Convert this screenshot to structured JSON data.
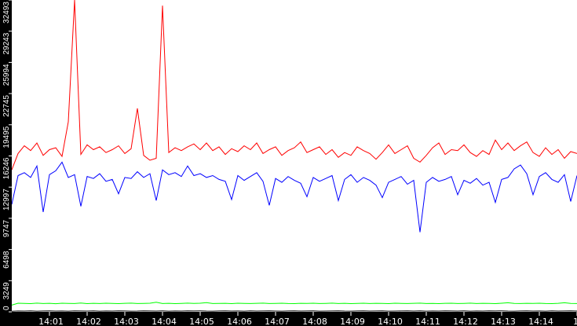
{
  "chart_data": {
    "type": "line",
    "title": "",
    "xlabel": "",
    "ylabel": "",
    "ylim": [
      0,
      32493
    ],
    "y_ticks": [
      "0",
      "3249",
      "6498",
      "9747",
      "12997",
      "16246",
      "19495",
      "22745",
      "25994",
      "29243",
      "32493"
    ],
    "x_ticks": [
      "14:01",
      "14:02",
      "14:03",
      "14:04",
      "14:05",
      "14:06",
      "14:07",
      "14:08",
      "14:09",
      "14:10",
      "14:11",
      "14:12",
      "14:13",
      "14:14",
      "14"
    ],
    "x_start": "14:00:00",
    "x_step_seconds": 10,
    "grid": false,
    "background": "#ffffff",
    "axis_color": "#000000",
    "series": [
      {
        "color": "#ff0000",
        "values": [
          14800,
          16500,
          17300,
          16800,
          17600,
          16300,
          16900,
          17100,
          16200,
          19800,
          32493,
          16400,
          17400,
          16900,
          17200,
          16600,
          16900,
          17300,
          16500,
          17000,
          21200,
          16300,
          15800,
          16000,
          31900,
          16600,
          17100,
          16800,
          17200,
          17500,
          16900,
          17600,
          16800,
          17200,
          16400,
          17000,
          16700,
          17300,
          16900,
          17600,
          16500,
          16900,
          17200,
          16300,
          16800,
          17100,
          17700,
          16600,
          16900,
          17200,
          16400,
          16900,
          16100,
          16600,
          16300,
          17200,
          16800,
          16500,
          15900,
          16600,
          17400,
          16500,
          16900,
          17300,
          16000,
          15600,
          16300,
          17100,
          17600,
          16400,
          16900,
          16800,
          17400,
          16600,
          16200,
          16800,
          16400,
          17900,
          16900,
          17600,
          16800,
          17300,
          17700,
          16600,
          16200,
          17100,
          16400,
          16900,
          16000,
          16700,
          16500
        ]
      },
      {
        "color": "#0000ff",
        "values": [
          11200,
          14200,
          14500,
          14000,
          15200,
          10400,
          14300,
          14700,
          15600,
          14000,
          14300,
          11000,
          14100,
          13900,
          14400,
          13600,
          13800,
          12300,
          14000,
          13900,
          14600,
          14000,
          14400,
          11600,
          14800,
          14300,
          14500,
          14100,
          15200,
          14200,
          14400,
          14000,
          14200,
          13800,
          13600,
          11700,
          14200,
          13700,
          14100,
          14500,
          13600,
          11100,
          13900,
          13500,
          14100,
          13700,
          13400,
          12000,
          14000,
          13600,
          13900,
          14200,
          11600,
          13800,
          14300,
          13500,
          14000,
          13700,
          13200,
          11900,
          13500,
          13800,
          14100,
          13300,
          13700,
          8300,
          13500,
          14000,
          13600,
          13800,
          14100,
          12200,
          13700,
          13400,
          13900,
          13200,
          13500,
          11400,
          13800,
          14000,
          14900,
          15300,
          14400,
          12200,
          14100,
          14500,
          13800,
          13500,
          14300,
          11500,
          14200
        ]
      },
      {
        "color": "#00ff00",
        "values": [
          700,
          900,
          880,
          860,
          910,
          870,
          890,
          850,
          900,
          880,
          870,
          920,
          860,
          890,
          870,
          900,
          880,
          860,
          890,
          910,
          870,
          880,
          900,
          1000,
          870,
          890,
          860,
          880,
          910,
          880,
          900,
          960,
          870,
          880,
          890,
          860,
          900,
          880,
          870,
          890,
          910,
          870,
          880,
          900,
          870,
          860,
          890,
          880,
          900,
          870,
          880,
          910,
          870,
          890,
          860,
          880,
          900,
          870,
          890,
          880,
          860,
          900,
          880,
          870,
          890,
          910,
          870,
          880,
          860,
          890,
          900,
          870,
          880,
          910,
          870,
          890,
          880,
          860,
          900,
          950,
          880,
          870,
          890,
          880,
          900,
          870,
          860,
          890,
          950,
          880,
          870
        ]
      },
      {
        "color": "#000000",
        "values": [
          60,
          90,
          80,
          100,
          70,
          90,
          110,
          80,
          90,
          70,
          100,
          90,
          80,
          110,
          70,
          90,
          80,
          100,
          90,
          70,
          80,
          110,
          90,
          80,
          100,
          70,
          90,
          80,
          100,
          90,
          110,
          80,
          70,
          90,
          100,
          80,
          90,
          70,
          110,
          80,
          90,
          100,
          80,
          70,
          90,
          110,
          80,
          90,
          100,
          70,
          80,
          90,
          110,
          80,
          70,
          90,
          100,
          80,
          90,
          110,
          70,
          80,
          90,
          100,
          80,
          110,
          70,
          90,
          80,
          100,
          90,
          80,
          110,
          70,
          90,
          80,
          100,
          90,
          110,
          80,
          70,
          90,
          100,
          80,
          90,
          70,
          110,
          80,
          90,
          100,
          80
        ]
      }
    ]
  }
}
